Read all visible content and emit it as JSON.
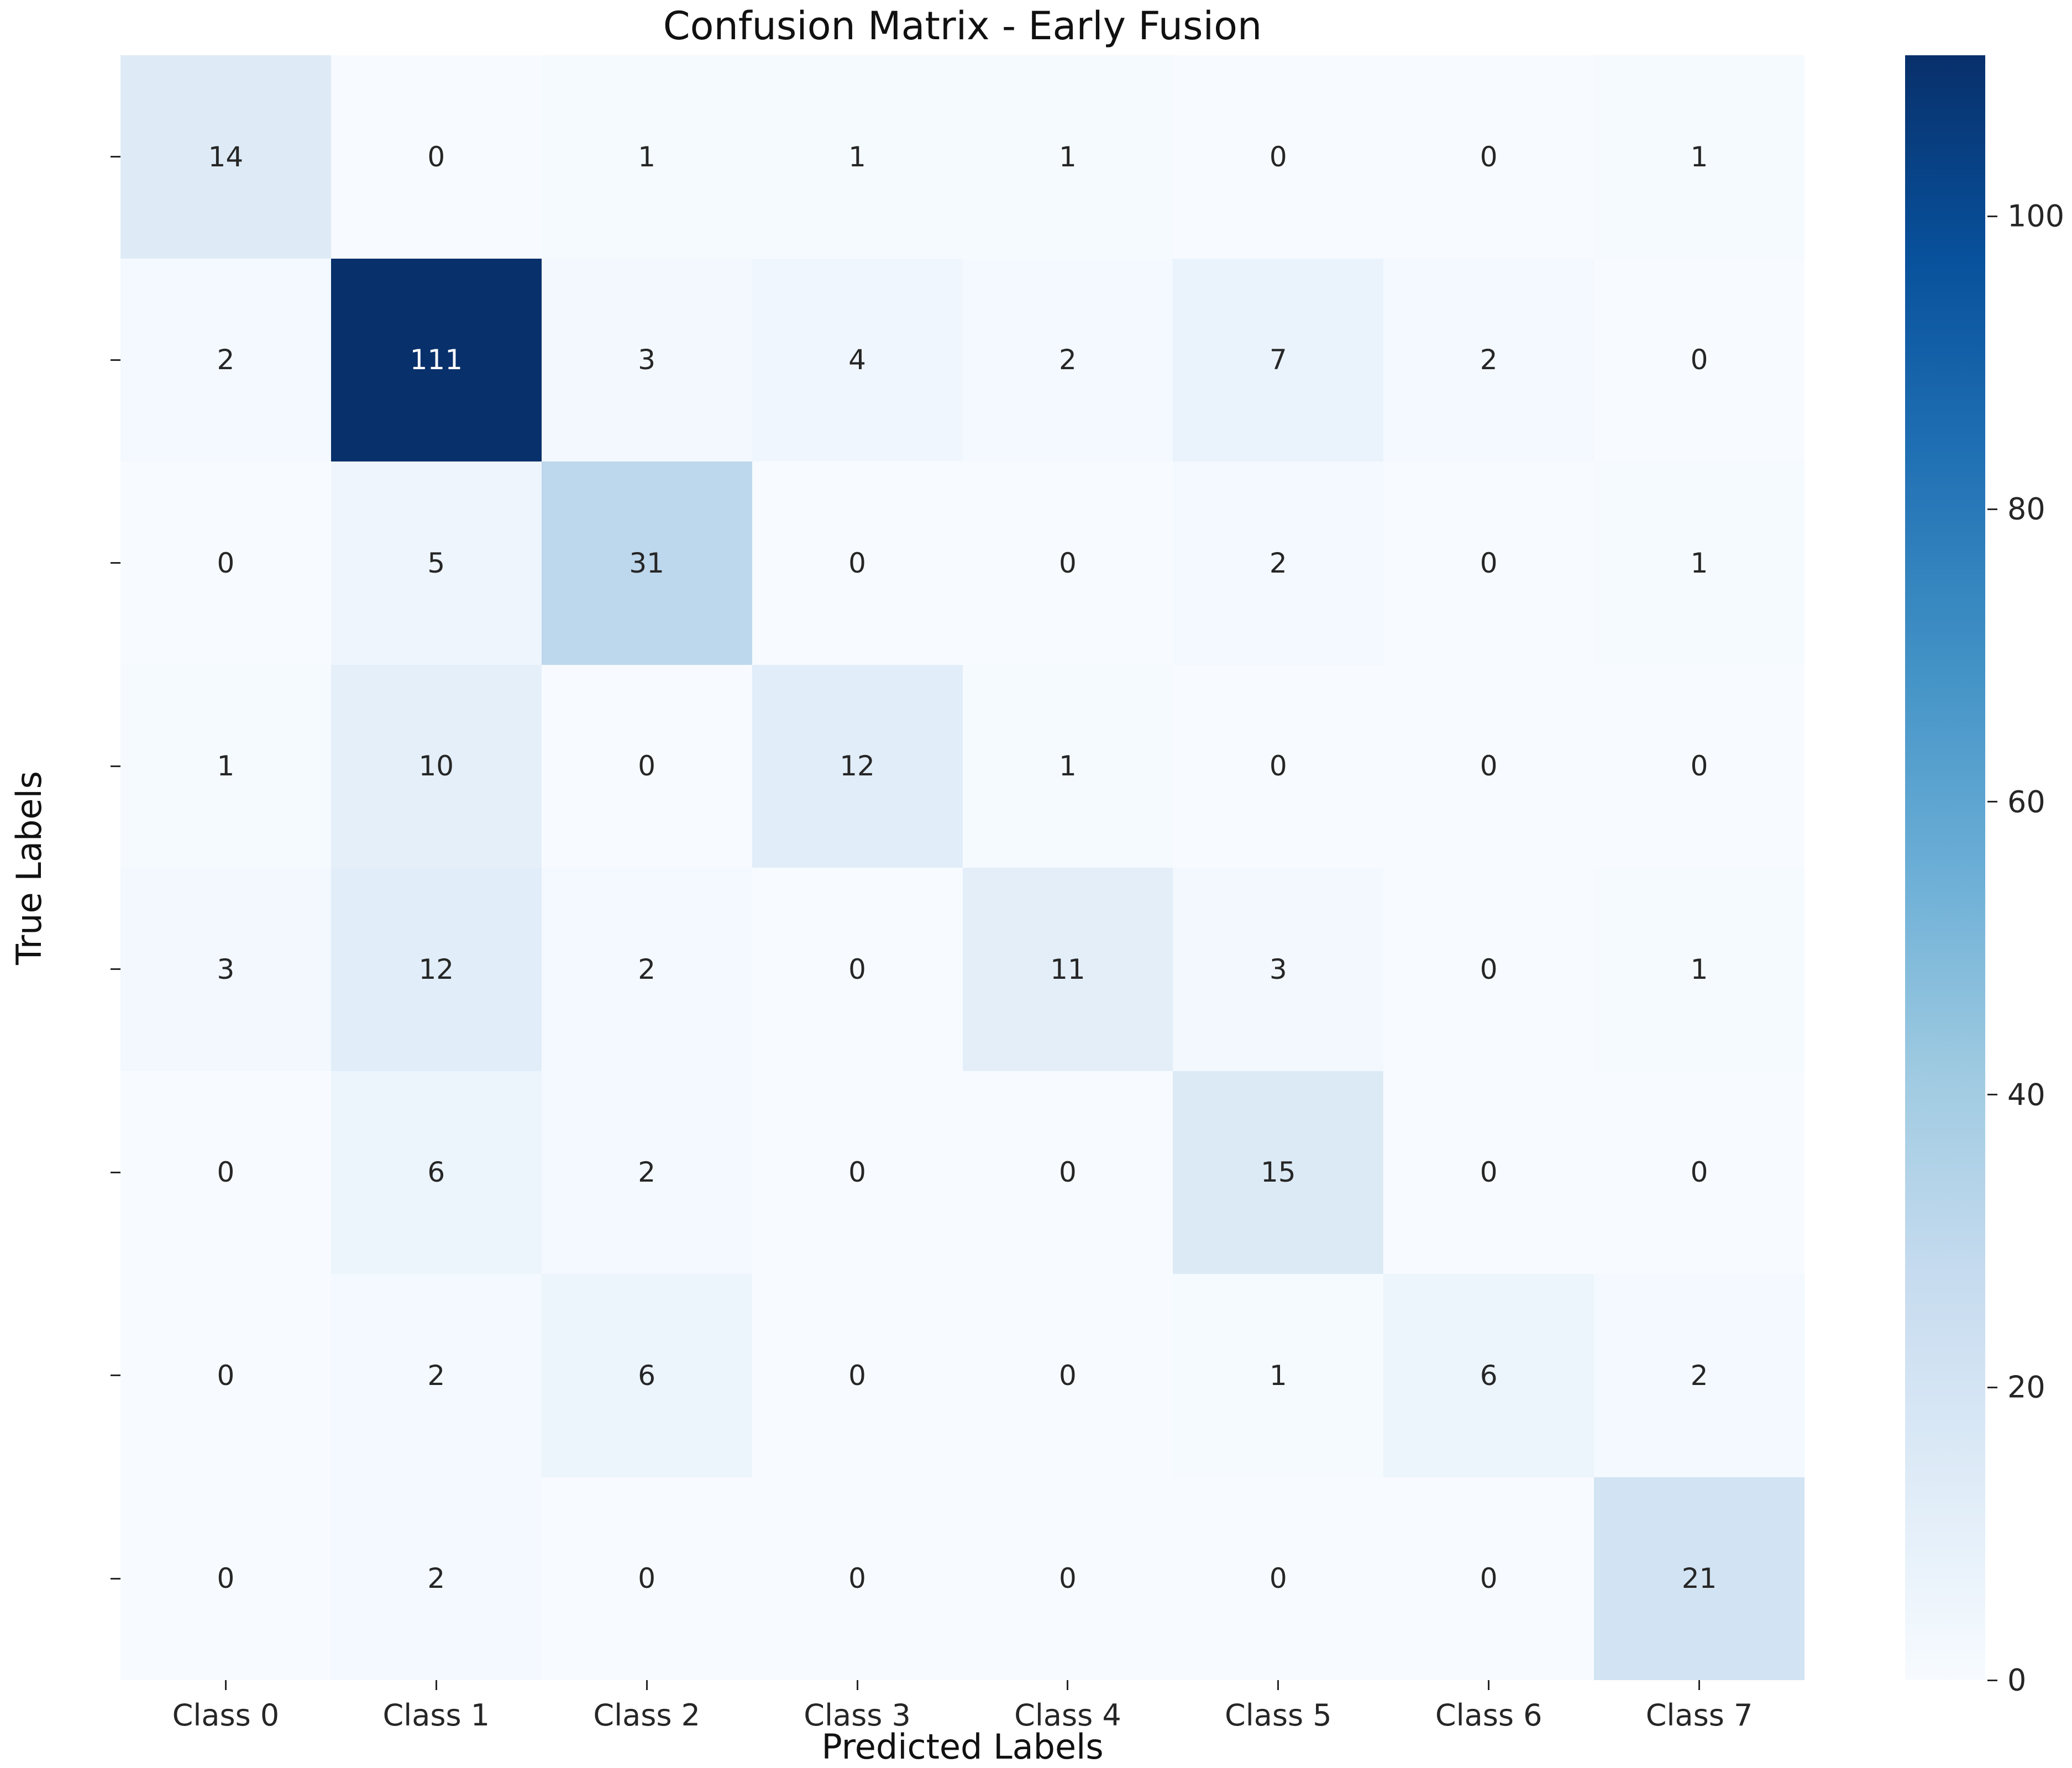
{
  "title": "Confusion Matrix - Early Fusion",
  "chart_data": {
    "type": "heatmap",
    "title": "Confusion Matrix - Early Fusion",
    "xlabel": "Predicted Labels",
    "ylabel": "True Labels",
    "x_tick_labels": [
      "Class 0",
      "Class 1",
      "Class 2",
      "Class 3",
      "Class 4",
      "Class 5",
      "Class 6",
      "Class 7"
    ],
    "y_tick_labels": [
      "Class 0",
      "Class 1",
      "Class 2",
      "Class 3",
      "Class 4",
      "Class 5",
      "Class 6",
      "Class 7"
    ],
    "matrix": [
      [
        14,
        0,
        1,
        1,
        1,
        0,
        0,
        1
      ],
      [
        2,
        111,
        3,
        4,
        2,
        7,
        2,
        0
      ],
      [
        0,
        5,
        31,
        0,
        0,
        2,
        0,
        1
      ],
      [
        1,
        10,
        0,
        12,
        1,
        0,
        0,
        0
      ],
      [
        3,
        12,
        2,
        0,
        11,
        3,
        0,
        1
      ],
      [
        0,
        6,
        2,
        0,
        0,
        15,
        0,
        0
      ],
      [
        0,
        2,
        6,
        0,
        0,
        1,
        6,
        2
      ],
      [
        0,
        2,
        0,
        0,
        0,
        0,
        0,
        21
      ]
    ],
    "vmin": 0,
    "vmax": 111,
    "grid": false,
    "legend_position": "right-colorbar",
    "colormap": "Blues",
    "colormap_stops": [
      [
        0.0,
        247,
        251,
        255
      ],
      [
        0.125,
        222,
        235,
        247
      ],
      [
        0.25,
        198,
        219,
        239
      ],
      [
        0.375,
        158,
        202,
        225
      ],
      [
        0.5,
        107,
        174,
        214
      ],
      [
        0.625,
        66,
        146,
        198
      ],
      [
        0.75,
        33,
        113,
        181
      ],
      [
        0.875,
        8,
        81,
        156
      ],
      [
        1.0,
        8,
        48,
        107
      ]
    ],
    "colorbar_ticks": [
      0,
      20,
      40,
      60,
      80,
      100
    ],
    "annotation_color_dark": "#262626",
    "annotation_color_light": "#ffffff",
    "background_color": "#ffffff"
  }
}
